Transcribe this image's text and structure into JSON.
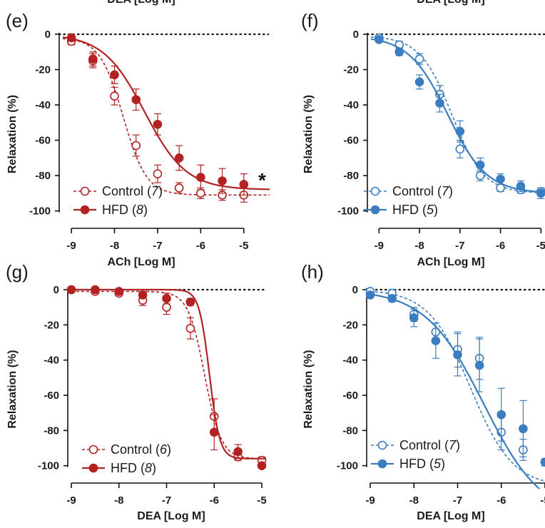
{
  "top_fragments": [
    "DEA [Log M]",
    "DEA [Log M]"
  ],
  "chart_data": [
    {
      "panel": "(e)",
      "type": "line",
      "xlabel": "ACh [Log M]",
      "ylabel": "Relaxation (%)",
      "xlim": [
        -9.2,
        -4.5
      ],
      "ylim": [
        -105,
        0
      ],
      "xticks": [
        -9,
        -8,
        -7,
        -6,
        -5
      ],
      "yticks": [
        0,
        -20,
        -40,
        -60,
        -80,
        -100
      ],
      "color": "#b22222",
      "annotation": "*",
      "series": [
        {
          "name": "Control",
          "n": "7",
          "marker": "open",
          "line": "dashed",
          "x": [
            -9,
            -8.5,
            -8,
            -7.5,
            -7,
            -6.5,
            -6,
            -5.5,
            -5
          ],
          "y": [
            -4,
            -15,
            -35,
            -63,
            -79,
            -87,
            -90,
            -91,
            -91
          ],
          "err": [
            2,
            4,
            5,
            6,
            5,
            3,
            3,
            3,
            4
          ],
          "fit": {
            "top": -2,
            "bottom": -91,
            "logec50": -7.8,
            "hill": 1.6
          }
        },
        {
          "name": "HFD",
          "n": "8",
          "marker": "filled",
          "line": "solid",
          "x": [
            -9,
            -8.5,
            -8,
            -7.5,
            -7,
            -6.5,
            -6,
            -5.5,
            -5
          ],
          "y": [
            -2,
            -14,
            -23,
            -37,
            -51,
            -70,
            -81,
            -83,
            -85
          ],
          "err": [
            2,
            4,
            5,
            6,
            6,
            7,
            7,
            7,
            6
          ],
          "fit": {
            "top": 0,
            "bottom": -88,
            "logec50": -7.3,
            "hill": 0.9
          }
        }
      ]
    },
    {
      "panel": "(f)",
      "type": "line",
      "xlabel": "ACh [Log M]",
      "ylabel": "Relaxation (%)",
      "xlim": [
        -9.2,
        -4.9
      ],
      "ylim": [
        -105,
        0
      ],
      "xticks": [
        -9,
        -8,
        -7,
        -6,
        -5
      ],
      "yticks": [
        0,
        -20,
        -40,
        -60,
        -80,
        -100
      ],
      "color": "#3a7dc1",
      "series": [
        {
          "name": "Control",
          "n": "7",
          "marker": "open",
          "line": "dashed",
          "x": [
            -9,
            -8.5,
            -8,
            -7.5,
            -7,
            -6.5,
            -6,
            -5.5,
            -5
          ],
          "y": [
            -2,
            -6,
            -14,
            -34,
            -65,
            -80,
            -87,
            -88,
            -89
          ],
          "err": [
            1,
            2,
            3,
            5,
            5,
            3,
            2,
            2,
            2
          ],
          "fit": {
            "top": -1,
            "bottom": -90,
            "logec50": -7.2,
            "hill": 1.1
          }
        },
        {
          "name": "HFD",
          "n": "5",
          "marker": "filled",
          "line": "solid",
          "x": [
            -9,
            -8.5,
            -8,
            -7.5,
            -7,
            -6.5,
            -6,
            -5.5,
            -5
          ],
          "y": [
            -3,
            -10,
            -27,
            -39,
            -55,
            -74,
            -82,
            -86,
            -90
          ],
          "err": [
            1,
            2,
            4,
            5,
            6,
            4,
            3,
            3,
            3
          ],
          "fit": {
            "top": -1,
            "bottom": -90,
            "logec50": -7.3,
            "hill": 0.9
          }
        }
      ]
    },
    {
      "panel": "(g)",
      "type": "line",
      "xlabel": "DEA [Log M]",
      "ylabel": "Relaxation (%)",
      "xlim": [
        -9.0,
        -5.0
      ],
      "ylim": [
        -105,
        0
      ],
      "xticks": [
        -9,
        -8,
        -7,
        -6,
        -5
      ],
      "yticks": [
        0,
        -20,
        -40,
        -60,
        -80,
        -100
      ],
      "color": "#b22222",
      "series": [
        {
          "name": "Control",
          "n": "6",
          "marker": "open",
          "line": "dashed",
          "x": [
            -9,
            -8.5,
            -8,
            -7.5,
            -7,
            -6.5,
            -6,
            -5.5,
            -5
          ],
          "y": [
            0,
            -1,
            -2,
            -6,
            -10,
            -22,
            -72,
            -95,
            -97
          ],
          "err": [
            1,
            1,
            1,
            3,
            4,
            6,
            10,
            2,
            2
          ],
          "fit": {
            "top": -1,
            "bottom": -96,
            "logec50": -6.2,
            "hill": 2.5
          }
        },
        {
          "name": "HFD",
          "n": "8",
          "marker": "filled",
          "line": "solid",
          "x": [
            -9,
            -8.5,
            -8,
            -7.5,
            -7,
            -6.5,
            -6,
            -5.5,
            -5
          ],
          "y": [
            0,
            0,
            -1,
            -3,
            -5,
            -7,
            -81,
            -92,
            -100
          ],
          "err": [
            1,
            1,
            1,
            2,
            3,
            2,
            10,
            4,
            1
          ],
          "fit": {
            "top": 0,
            "bottom": -96,
            "logec50": -6.1,
            "hill": 4
          }
        }
      ]
    },
    {
      "panel": "(h)",
      "type": "line",
      "xlabel": "DEA [Log M]",
      "ylabel": "Relaxation (%)",
      "xlim": [
        -9.0,
        -5.0
      ],
      "ylim": [
        -105,
        0
      ],
      "xticks": [
        -9,
        -8,
        -7,
        -6,
        -5
      ],
      "yticks": [
        0,
        -20,
        -40,
        -60,
        -80,
        -100
      ],
      "color": "#3a7dc1",
      "series": [
        {
          "name": "Control",
          "n": "7",
          "marker": "open",
          "line": "dashed",
          "x": [
            -9,
            -8.5,
            -8,
            -7.5,
            -7,
            -6.5,
            -6,
            -5.5,
            -5
          ],
          "y": [
            -1,
            -2,
            -14,
            -24,
            -34,
            -39,
            -81,
            -91,
            -98
          ],
          "err": [
            1,
            2,
            4,
            5,
            10,
            12,
            10,
            6,
            2
          ],
          "fit": {
            "top": 0,
            "bottom": -112,
            "logec50": -6.7,
            "hill": 0.9
          }
        },
        {
          "name": "HFD",
          "n": "5",
          "marker": "filled",
          "line": "solid",
          "x": [
            -9,
            -8.5,
            -8,
            -7.5,
            -7,
            -6.5,
            -6,
            -5.5,
            -5
          ],
          "y": [
            -3,
            -5,
            -16,
            -29,
            -37,
            -43,
            -71,
            -79,
            -98
          ],
          "err": [
            1,
            2,
            5,
            10,
            12,
            15,
            15,
            16,
            2
          ],
          "fit": {
            "top": 0,
            "bottom": -130,
            "logec50": -6.4,
            "hill": 0.65
          }
        }
      ]
    }
  ]
}
